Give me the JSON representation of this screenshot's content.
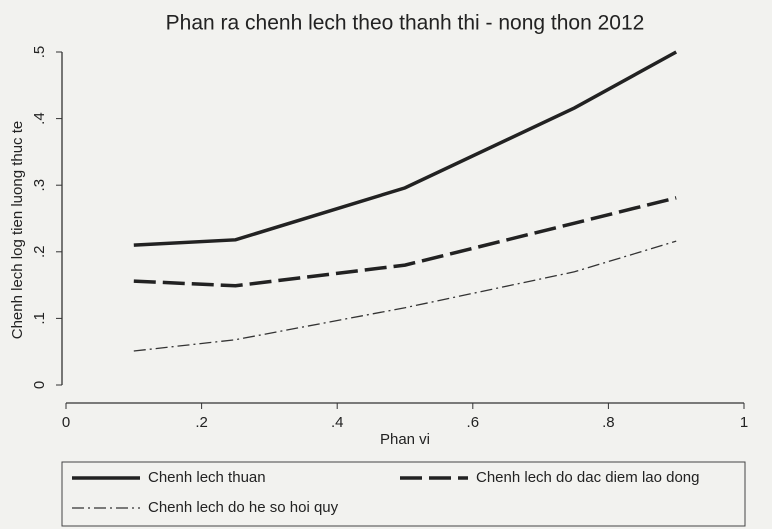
{
  "chart_data": {
    "type": "line",
    "title": "Phan ra chenh lech theo thanh thi - nong thon  2012",
    "x_label": "Phan vi",
    "y_label": "Chenh lech log tien luong thuc te",
    "x": [
      0.1,
      0.25,
      0.5,
      0.75,
      0.9
    ],
    "series": [
      {
        "name": "Chenh lech thuan",
        "color": "#222222",
        "dash": "solid",
        "values": [
          0.21,
          0.218,
          0.296,
          0.416,
          0.5
        ]
      },
      {
        "name": "Chenh lech do dac diem lao dong",
        "color": "#222222",
        "dash": "long",
        "values": [
          0.156,
          0.149,
          0.18,
          0.243,
          0.281
        ]
      },
      {
        "name": "Chenh lech do he so hoi quy",
        "color": "#333333",
        "dash": "dashdot",
        "values": [
          0.051,
          0.068,
          0.116,
          0.17,
          0.216
        ]
      }
    ],
    "xlim": [
      0,
      1
    ],
    "xticks": [
      0,
      {
        "value": 0.2,
        "label": ".2"
      },
      {
        "value": 0.4,
        "label": ".4"
      },
      {
        "value": 0.6,
        "label": ".6"
      },
      {
        "value": 0.8,
        "label": ".8"
      },
      1
    ],
    "ylim": [
      0,
      0.5
    ],
    "yticks": [
      0,
      {
        "value": 0.1,
        "label": ".1"
      },
      {
        "value": 0.2,
        "label": ".2"
      },
      {
        "value": 0.3,
        "label": ".3"
      },
      {
        "value": 0.4,
        "label": ".4"
      },
      {
        "value": 0.5,
        "label": ".5"
      }
    ],
    "grid": false,
    "legend": "bottom"
  }
}
